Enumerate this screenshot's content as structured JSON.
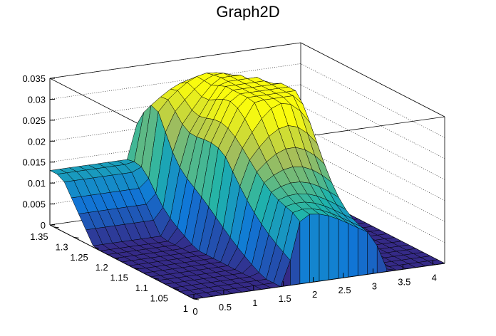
{
  "chart_data": {
    "type": "surface3d",
    "title": "Graph2D",
    "xlabel": "",
    "ylabel": "",
    "zlabel": "",
    "x_ticks": [
      "0",
      "0.5",
      "1",
      "1.5",
      "2",
      "2.5",
      "3",
      "3.5",
      "4"
    ],
    "y_ticks": [
      "1",
      "1.05",
      "1.1",
      "1.15",
      "1.2",
      "1.25",
      "1.3",
      "1.35"
    ],
    "z_ticks": [
      "0",
      "0.005",
      "0.01",
      "0.015",
      "0.02",
      "0.025",
      "0.03",
      "0.035"
    ],
    "xlim": [
      0,
      4.2
    ],
    "ylim": [
      1,
      1.36
    ],
    "zlim": [
      0,
      0.035
    ],
    "palette": "kBird",
    "grid": true,
    "mesh_description": "surface peaks near x=2.5, y=1.2 at about z=0.03; drops to zero for x below about 1.3 at y near 1 and for x above about 3.2"
  }
}
